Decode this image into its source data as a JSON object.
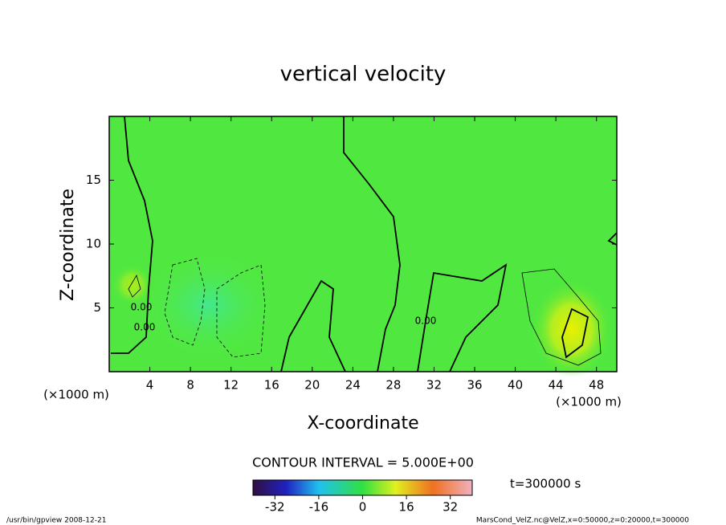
{
  "chart_data": {
    "type": "contour",
    "title": "vertical velocity",
    "x_label": "X-coordinate",
    "y_label": "Z-coordinate",
    "x_unit_labels": [
      "(×1000 m)",
      "(×1000 m)"
    ],
    "xlim": [
      0,
      50
    ],
    "xticks": [
      4,
      8,
      12,
      16,
      20,
      24,
      28,
      32,
      36,
      40,
      44,
      48
    ],
    "ylim": [
      0,
      20
    ],
    "yticks": [
      5,
      10,
      15
    ],
    "contour_labels": [
      "0.00",
      "0.00",
      "0.00"
    ],
    "contour_interval_text": "CONTOUR INTERVAL = 5.000E+00",
    "time_label": "t=300000 s",
    "colorbar_lim": [
      -40,
      40
    ],
    "colorbar_ticks": [
      -32,
      -16,
      0,
      16,
      32
    ],
    "footer_left": "/usr/bin/gpview  2008-12-21",
    "footer_right": "MarsCond_VelZ.nc@VelZ,x=0:50000,z=0:20000,t=300000"
  }
}
